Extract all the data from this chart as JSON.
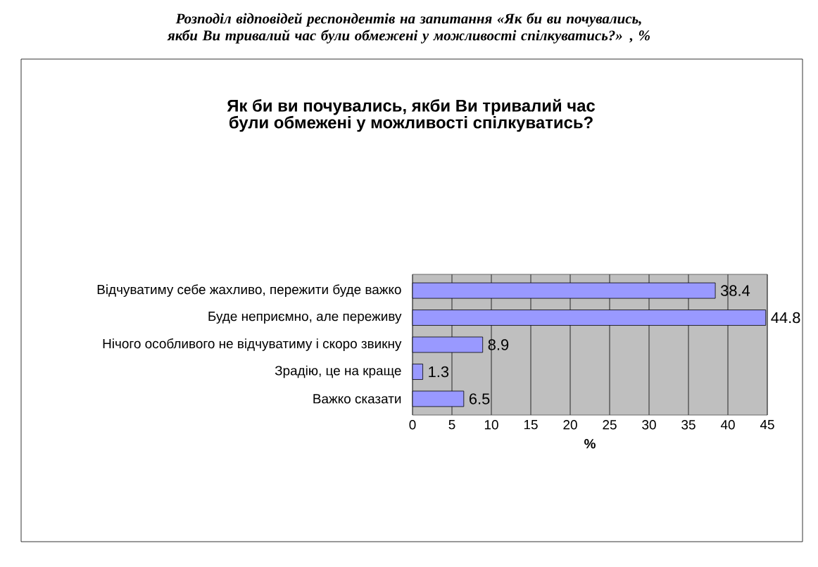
{
  "chart_data": {
    "type": "bar",
    "orientation": "horizontal",
    "subtitle": "Розподіл відповідей респондентів на запитання «Як би ви почувались, якби Ви тривалий час були обмежені у можливості спілкуватись?» , %",
    "title": "Як би ви почувались, якби Ви тривалий час були обмежені у можливості спілкуватись?",
    "xlabel": "%",
    "categories": [
      "Відчуватиму себе жахливо, пережити буде важко",
      "Буде неприємно, але переживу",
      "Нічого особливого не відчуватиму і скоро звикну",
      "Зрадію, це на краще",
      "Важко сказати"
    ],
    "values": [
      38.4,
      44.8,
      8.9,
      1.3,
      6.5
    ],
    "color": "#9999ff",
    "data_labels": true,
    "xlim": [
      0,
      45
    ],
    "xticks": [
      0,
      5,
      10,
      15,
      20,
      25,
      30,
      35,
      40,
      45
    ],
    "grid": "x"
  }
}
